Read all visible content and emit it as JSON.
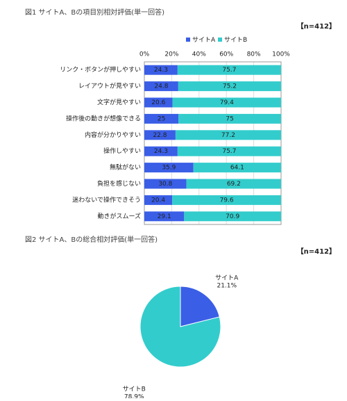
{
  "chart_data": [
    {
      "type": "bar",
      "orientation": "horizontal",
      "stacked": true,
      "title": "図1 サイトA、Bの項目別相対評価(単一回答)",
      "note": "【n=412】",
      "categories": [
        "リンク・ボタンが押しやすい",
        "レイアウトが見やすい",
        "文字が見やすい",
        "操作後の動きが想像できる",
        "内容が分かりやすい",
        "操作しやすい",
        "無駄がない",
        "負担を感じない",
        "迷わないで操作できそう",
        "動きがスムーズ"
      ],
      "series": [
        {
          "name": "サイトA",
          "color": "#3a5ee6",
          "values": [
            24.3,
            24.8,
            20.6,
            25.0,
            22.8,
            24.3,
            35.9,
            30.8,
            20.4,
            29.1
          ]
        },
        {
          "name": "サイトB",
          "color": "#33cccc",
          "values": [
            75.7,
            75.2,
            79.4,
            75.0,
            77.2,
            75.7,
            64.1,
            69.2,
            79.6,
            70.9
          ]
        }
      ],
      "xlim": [
        0,
        100
      ],
      "xticks": [
        {
          "value": 0,
          "label": "0%"
        },
        {
          "value": 20,
          "label": "20%"
        },
        {
          "value": 40,
          "label": "40%"
        },
        {
          "value": 60,
          "label": "60%"
        },
        {
          "value": 80,
          "label": "80%"
        },
        {
          "value": 100,
          "label": "100%"
        }
      ],
      "grid": true,
      "legend": "top"
    },
    {
      "type": "pie",
      "title": "図2 サイトA、Bの総合相対評価(単一回答)",
      "note": "【n=412】",
      "categories": [
        "サイトA",
        "サイトB"
      ],
      "colors": [
        "#3a5ee6",
        "#33cccc"
      ],
      "values": [
        21.1,
        78.9
      ],
      "value_labels": [
        "21.1%",
        "78.9%"
      ]
    }
  ]
}
